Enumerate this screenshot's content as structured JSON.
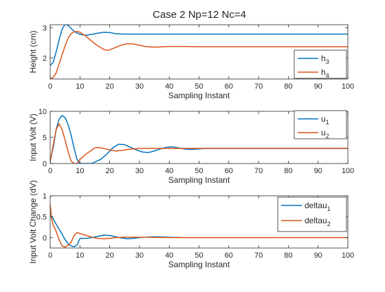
{
  "figure": {
    "title": "Case 2 Np=12 Nc=4"
  },
  "colors": {
    "series1": "#0072bd",
    "series2": "#d95319",
    "axis": "#262626",
    "legend_border": "#262626"
  },
  "chart_data": [
    {
      "type": "line",
      "xlabel": "Sampling Instant",
      "ylabel": "Height (cm)",
      "xlim": [
        0,
        100
      ],
      "ylim": [
        1.3,
        3.1
      ],
      "xticks": [
        "0",
        "10",
        "20",
        "30",
        "40",
        "50",
        "60",
        "70",
        "80",
        "90",
        "100"
      ],
      "yticks": [
        "2",
        "3"
      ],
      "yticks_values": [
        2,
        3
      ],
      "legend": "bottom-right",
      "grid": false,
      "series": [
        {
          "name": "h3",
          "name_base": "h",
          "name_sub": "3",
          "points": [
            [
              0,
              1.75
            ],
            [
              1,
              1.85
            ],
            [
              2,
              2.2
            ],
            [
              3,
              2.6
            ],
            [
              4,
              2.95
            ],
            [
              5,
              3.12
            ],
            [
              6,
              3.08
            ],
            [
              7,
              2.98
            ],
            [
              8,
              2.88
            ],
            [
              10,
              2.78
            ],
            [
              12,
              2.75
            ],
            [
              14,
              2.78
            ],
            [
              16,
              2.82
            ],
            [
              18,
              2.85
            ],
            [
              20,
              2.84
            ],
            [
              22,
              2.8
            ],
            [
              25,
              2.79
            ],
            [
              30,
              2.79
            ],
            [
              40,
              2.79
            ],
            [
              50,
              2.79
            ],
            [
              60,
              2.79
            ],
            [
              70,
              2.79
            ],
            [
              80,
              2.79
            ],
            [
              90,
              2.79
            ],
            [
              100,
              2.79
            ]
          ]
        },
        {
          "name": "h4",
          "name_base": "h",
          "name_sub": "4",
          "points": [
            [
              0,
              1.3
            ],
            [
              1,
              1.35
            ],
            [
              2,
              1.5
            ],
            [
              3,
              1.8
            ],
            [
              4,
              2.1
            ],
            [
              5,
              2.4
            ],
            [
              6,
              2.65
            ],
            [
              7,
              2.8
            ],
            [
              8,
              2.86
            ],
            [
              9,
              2.88
            ],
            [
              10,
              2.85
            ],
            [
              12,
              2.72
            ],
            [
              14,
              2.55
            ],
            [
              16,
              2.4
            ],
            [
              18,
              2.28
            ],
            [
              19,
              2.25
            ],
            [
              20,
              2.27
            ],
            [
              22,
              2.35
            ],
            [
              24,
              2.43
            ],
            [
              26,
              2.47
            ],
            [
              28,
              2.46
            ],
            [
              30,
              2.42
            ],
            [
              32,
              2.38
            ],
            [
              34,
              2.36
            ],
            [
              36,
              2.36
            ],
            [
              38,
              2.37
            ],
            [
              40,
              2.38
            ],
            [
              45,
              2.38
            ],
            [
              50,
              2.37
            ],
            [
              60,
              2.37
            ],
            [
              70,
              2.37
            ],
            [
              80,
              2.37
            ],
            [
              90,
              2.37
            ],
            [
              100,
              2.37
            ]
          ]
        }
      ]
    },
    {
      "type": "line",
      "xlabel": "Sampling Instant",
      "ylabel": "Input Volt (V)",
      "xlim": [
        0,
        100
      ],
      "ylim": [
        0,
        10
      ],
      "xticks": [
        "0",
        "10",
        "20",
        "30",
        "40",
        "50",
        "60",
        "70",
        "80",
        "90",
        "100"
      ],
      "yticks": [
        "0",
        "5",
        "10"
      ],
      "yticks_values": [
        0,
        5,
        10
      ],
      "legend": "top-right",
      "grid": false,
      "series": [
        {
          "name": "u1",
          "name_base": "u",
          "name_sub": "1",
          "points": [
            [
              0,
              0.5
            ],
            [
              1,
              3
            ],
            [
              2,
              6.5
            ],
            [
              3,
              8.5
            ],
            [
              4,
              9.2
            ],
            [
              5,
              8.8
            ],
            [
              6,
              7.5
            ],
            [
              7,
              5.5
            ],
            [
              8,
              3
            ],
            [
              9,
              0.8
            ],
            [
              10,
              0
            ],
            [
              13,
              0
            ],
            [
              14,
              0
            ],
            [
              15,
              0.3
            ],
            [
              17,
              0.8
            ],
            [
              19,
              1.8
            ],
            [
              21,
              3
            ],
            [
              23,
              3.7
            ],
            [
              25,
              3.6
            ],
            [
              27,
              3.1
            ],
            [
              29,
              2.6
            ],
            [
              31,
              2.2
            ],
            [
              33,
              2.1
            ],
            [
              35,
              2.4
            ],
            [
              37,
              2.8
            ],
            [
              39,
              3.1
            ],
            [
              41,
              3.2
            ],
            [
              43,
              3
            ],
            [
              45,
              2.8
            ],
            [
              47,
              2.7
            ],
            [
              50,
              2.8
            ],
            [
              52,
              2.9
            ],
            [
              55,
              2.9
            ],
            [
              60,
              2.9
            ],
            [
              70,
              2.9
            ],
            [
              80,
              2.9
            ],
            [
              90,
              2.9
            ],
            [
              100,
              2.9
            ]
          ]
        },
        {
          "name": "u2",
          "name_base": "u",
          "name_sub": "2",
          "points": [
            [
              0,
              0.3
            ],
            [
              1,
              3.5
            ],
            [
              2,
              6.5
            ],
            [
              3,
              7.6
            ],
            [
              4,
              6.5
            ],
            [
              5,
              4.5
            ],
            [
              6,
              2.3
            ],
            [
              7,
              0.5
            ],
            [
              8,
              0
            ],
            [
              9,
              0
            ],
            [
              10,
              0.8
            ],
            [
              12,
              1.8
            ],
            [
              14,
              2.6
            ],
            [
              15,
              3
            ],
            [
              16,
              3.1
            ],
            [
              18,
              2.9
            ],
            [
              20,
              2.6
            ],
            [
              22,
              2.4
            ],
            [
              24,
              2.5
            ],
            [
              26,
              2.7
            ],
            [
              28,
              2.8
            ],
            [
              30,
              2.9
            ],
            [
              35,
              2.9
            ],
            [
              40,
              2.9
            ],
            [
              50,
              2.9
            ],
            [
              60,
              2.9
            ],
            [
              70,
              2.9
            ],
            [
              80,
              2.9
            ],
            [
              90,
              2.9
            ],
            [
              100,
              2.9
            ]
          ]
        }
      ]
    },
    {
      "type": "line",
      "xlabel": "Sampling Instant",
      "ylabel": "Input Volt Change (dV)",
      "xlim": [
        0,
        100
      ],
      "ylim": [
        -0.25,
        1
      ],
      "xticks": [
        "0",
        "10",
        "20",
        "30",
        "40",
        "50",
        "60",
        "70",
        "80",
        "90",
        "100"
      ],
      "yticks": [
        "0",
        "0.5",
        "1"
      ],
      "yticks_values": [
        0,
        0.5,
        1
      ],
      "legend": "top-right",
      "grid": false,
      "series": [
        {
          "name": "deltau1",
          "name_base": "deltau",
          "name_sub": "1",
          "points": [
            [
              0,
              0.55
            ],
            [
              1,
              0.45
            ],
            [
              2,
              0.32
            ],
            [
              3,
              0.2
            ],
            [
              4,
              0.08
            ],
            [
              5,
              -0.05
            ],
            [
              6,
              -0.15
            ],
            [
              7,
              -0.2
            ],
            [
              8,
              -0.22
            ],
            [
              9,
              -0.18
            ],
            [
              10,
              -0.02
            ],
            [
              12,
              -0.02
            ],
            [
              14,
              0.0
            ],
            [
              16,
              0.03
            ],
            [
              18,
              0.06
            ],
            [
              20,
              0.05
            ],
            [
              22,
              0.02
            ],
            [
              24,
              -0.01
            ],
            [
              26,
              -0.03
            ],
            [
              28,
              -0.02
            ],
            [
              30,
              0.0
            ],
            [
              35,
              0.02
            ],
            [
              40,
              0.01
            ],
            [
              45,
              0.0
            ],
            [
              50,
              0.0
            ],
            [
              60,
              0.0
            ],
            [
              70,
              0.0
            ],
            [
              80,
              0.0
            ],
            [
              90,
              0.0
            ],
            [
              100,
              0.0
            ]
          ]
        },
        {
          "name": "deltau2",
          "name_base": "deltau",
          "name_sub": "2",
          "points": [
            [
              0,
              0.8
            ],
            [
              0.5,
              0.45
            ],
            [
              1,
              0.3
            ],
            [
              2,
              0.15
            ],
            [
              3,
              -0.05
            ],
            [
              4,
              -0.2
            ],
            [
              5,
              -0.23
            ],
            [
              6,
              -0.18
            ],
            [
              7,
              -0.12
            ],
            [
              8,
              0.05
            ],
            [
              9,
              0.12
            ],
            [
              10,
              0.1
            ],
            [
              12,
              0.05
            ],
            [
              14,
              0.01
            ],
            [
              16,
              -0.02
            ],
            [
              18,
              -0.03
            ],
            [
              20,
              -0.02
            ],
            [
              22,
              0.0
            ],
            [
              25,
              0.01
            ],
            [
              30,
              0.01
            ],
            [
              40,
              0.0
            ],
            [
              50,
              0.0
            ],
            [
              60,
              0.0
            ],
            [
              70,
              0.0
            ],
            [
              80,
              0.0
            ],
            [
              90,
              0.0
            ],
            [
              100,
              0.0
            ]
          ]
        }
      ]
    }
  ]
}
